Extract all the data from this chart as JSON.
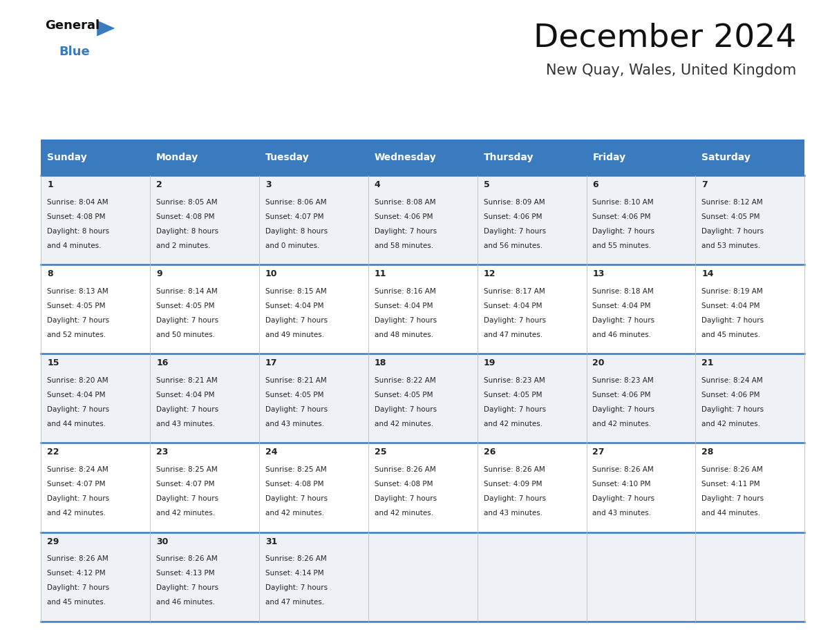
{
  "title": "December 2024",
  "subtitle": "New Quay, Wales, United Kingdom",
  "header_bg": "#3a7abf",
  "header_text": "#ffffff",
  "day_names": [
    "Sunday",
    "Monday",
    "Tuesday",
    "Wednesday",
    "Thursday",
    "Friday",
    "Saturday"
  ],
  "row_bg_odd": "#eef2f7",
  "row_bg_even": "#ffffff",
  "cell_text_color": "#222222",
  "day_num_color": "#222222",
  "border_color": "#3a7abf",
  "days": [
    {
      "date": 1,
      "col": 0,
      "row": 0,
      "sunrise": "8:04 AM",
      "sunset": "4:08 PM",
      "daylight_line1": "8 hours",
      "daylight_line2": "and 4 minutes."
    },
    {
      "date": 2,
      "col": 1,
      "row": 0,
      "sunrise": "8:05 AM",
      "sunset": "4:08 PM",
      "daylight_line1": "8 hours",
      "daylight_line2": "and 2 minutes."
    },
    {
      "date": 3,
      "col": 2,
      "row": 0,
      "sunrise": "8:06 AM",
      "sunset": "4:07 PM",
      "daylight_line1": "8 hours",
      "daylight_line2": "and 0 minutes."
    },
    {
      "date": 4,
      "col": 3,
      "row": 0,
      "sunrise": "8:08 AM",
      "sunset": "4:06 PM",
      "daylight_line1": "7 hours",
      "daylight_line2": "and 58 minutes."
    },
    {
      "date": 5,
      "col": 4,
      "row": 0,
      "sunrise": "8:09 AM",
      "sunset": "4:06 PM",
      "daylight_line1": "7 hours",
      "daylight_line2": "and 56 minutes."
    },
    {
      "date": 6,
      "col": 5,
      "row": 0,
      "sunrise": "8:10 AM",
      "sunset": "4:06 PM",
      "daylight_line1": "7 hours",
      "daylight_line2": "and 55 minutes."
    },
    {
      "date": 7,
      "col": 6,
      "row": 0,
      "sunrise": "8:12 AM",
      "sunset": "4:05 PM",
      "daylight_line1": "7 hours",
      "daylight_line2": "and 53 minutes."
    },
    {
      "date": 8,
      "col": 0,
      "row": 1,
      "sunrise": "8:13 AM",
      "sunset": "4:05 PM",
      "daylight_line1": "7 hours",
      "daylight_line2": "and 52 minutes."
    },
    {
      "date": 9,
      "col": 1,
      "row": 1,
      "sunrise": "8:14 AM",
      "sunset": "4:05 PM",
      "daylight_line1": "7 hours",
      "daylight_line2": "and 50 minutes."
    },
    {
      "date": 10,
      "col": 2,
      "row": 1,
      "sunrise": "8:15 AM",
      "sunset": "4:04 PM",
      "daylight_line1": "7 hours",
      "daylight_line2": "and 49 minutes."
    },
    {
      "date": 11,
      "col": 3,
      "row": 1,
      "sunrise": "8:16 AM",
      "sunset": "4:04 PM",
      "daylight_line1": "7 hours",
      "daylight_line2": "and 48 minutes."
    },
    {
      "date": 12,
      "col": 4,
      "row": 1,
      "sunrise": "8:17 AM",
      "sunset": "4:04 PM",
      "daylight_line1": "7 hours",
      "daylight_line2": "and 47 minutes."
    },
    {
      "date": 13,
      "col": 5,
      "row": 1,
      "sunrise": "8:18 AM",
      "sunset": "4:04 PM",
      "daylight_line1": "7 hours",
      "daylight_line2": "and 46 minutes."
    },
    {
      "date": 14,
      "col": 6,
      "row": 1,
      "sunrise": "8:19 AM",
      "sunset": "4:04 PM",
      "daylight_line1": "7 hours",
      "daylight_line2": "and 45 minutes."
    },
    {
      "date": 15,
      "col": 0,
      "row": 2,
      "sunrise": "8:20 AM",
      "sunset": "4:04 PM",
      "daylight_line1": "7 hours",
      "daylight_line2": "and 44 minutes."
    },
    {
      "date": 16,
      "col": 1,
      "row": 2,
      "sunrise": "8:21 AM",
      "sunset": "4:04 PM",
      "daylight_line1": "7 hours",
      "daylight_line2": "and 43 minutes."
    },
    {
      "date": 17,
      "col": 2,
      "row": 2,
      "sunrise": "8:21 AM",
      "sunset": "4:05 PM",
      "daylight_line1": "7 hours",
      "daylight_line2": "and 43 minutes."
    },
    {
      "date": 18,
      "col": 3,
      "row": 2,
      "sunrise": "8:22 AM",
      "sunset": "4:05 PM",
      "daylight_line1": "7 hours",
      "daylight_line2": "and 42 minutes."
    },
    {
      "date": 19,
      "col": 4,
      "row": 2,
      "sunrise": "8:23 AM",
      "sunset": "4:05 PM",
      "daylight_line1": "7 hours",
      "daylight_line2": "and 42 minutes."
    },
    {
      "date": 20,
      "col": 5,
      "row": 2,
      "sunrise": "8:23 AM",
      "sunset": "4:06 PM",
      "daylight_line1": "7 hours",
      "daylight_line2": "and 42 minutes."
    },
    {
      "date": 21,
      "col": 6,
      "row": 2,
      "sunrise": "8:24 AM",
      "sunset": "4:06 PM",
      "daylight_line1": "7 hours",
      "daylight_line2": "and 42 minutes."
    },
    {
      "date": 22,
      "col": 0,
      "row": 3,
      "sunrise": "8:24 AM",
      "sunset": "4:07 PM",
      "daylight_line1": "7 hours",
      "daylight_line2": "and 42 minutes."
    },
    {
      "date": 23,
      "col": 1,
      "row": 3,
      "sunrise": "8:25 AM",
      "sunset": "4:07 PM",
      "daylight_line1": "7 hours",
      "daylight_line2": "and 42 minutes."
    },
    {
      "date": 24,
      "col": 2,
      "row": 3,
      "sunrise": "8:25 AM",
      "sunset": "4:08 PM",
      "daylight_line1": "7 hours",
      "daylight_line2": "and 42 minutes."
    },
    {
      "date": 25,
      "col": 3,
      "row": 3,
      "sunrise": "8:26 AM",
      "sunset": "4:08 PM",
      "daylight_line1": "7 hours",
      "daylight_line2": "and 42 minutes."
    },
    {
      "date": 26,
      "col": 4,
      "row": 3,
      "sunrise": "8:26 AM",
      "sunset": "4:09 PM",
      "daylight_line1": "7 hours",
      "daylight_line2": "and 43 minutes."
    },
    {
      "date": 27,
      "col": 5,
      "row": 3,
      "sunrise": "8:26 AM",
      "sunset": "4:10 PM",
      "daylight_line1": "7 hours",
      "daylight_line2": "and 43 minutes."
    },
    {
      "date": 28,
      "col": 6,
      "row": 3,
      "sunrise": "8:26 AM",
      "sunset": "4:11 PM",
      "daylight_line1": "7 hours",
      "daylight_line2": "and 44 minutes."
    },
    {
      "date": 29,
      "col": 0,
      "row": 4,
      "sunrise": "8:26 AM",
      "sunset": "4:12 PM",
      "daylight_line1": "7 hours",
      "daylight_line2": "and 45 minutes."
    },
    {
      "date": 30,
      "col": 1,
      "row": 4,
      "sunrise": "8:26 AM",
      "sunset": "4:13 PM",
      "daylight_line1": "7 hours",
      "daylight_line2": "and 46 minutes."
    },
    {
      "date": 31,
      "col": 2,
      "row": 4,
      "sunrise": "8:26 AM",
      "sunset": "4:14 PM",
      "daylight_line1": "7 hours",
      "daylight_line2": "and 47 minutes."
    }
  ]
}
